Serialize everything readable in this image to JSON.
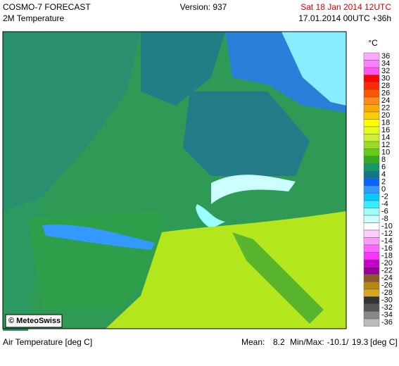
{
  "header": {
    "title": "COSMO-7 FORECAST",
    "subtitle": "2M Temperature",
    "version": "Version: 937",
    "valid_time": "Sat 18 Jan 2014 12UTC",
    "run": "17.01.2014 00UTC +36h"
  },
  "map": {
    "credit": "© MeteoSwiss"
  },
  "legend": {
    "unit": "°C",
    "entries": [
      {
        "label": 36,
        "color": "#ffaaff"
      },
      {
        "label": 34,
        "color": "#ff80ff"
      },
      {
        "label": 32,
        "color": "#ff55ee"
      },
      {
        "label": 30,
        "color": "#ff0000"
      },
      {
        "label": 28,
        "color": "#ff2a00"
      },
      {
        "label": 26,
        "color": "#ff5500"
      },
      {
        "label": 24,
        "color": "#ff8c1a"
      },
      {
        "label": 22,
        "color": "#ffaa00"
      },
      {
        "label": 20,
        "color": "#ffcc00"
      },
      {
        "label": 18,
        "color": "#ffff00"
      },
      {
        "label": 16,
        "color": "#e6ff1a"
      },
      {
        "label": 14,
        "color": "#ccf033"
      },
      {
        "label": 12,
        "color": "#99dd22"
      },
      {
        "label": 10,
        "color": "#66cc11"
      },
      {
        "label": 8,
        "color": "#33aa22"
      },
      {
        "label": 6,
        "color": "#119966"
      },
      {
        "label": 4,
        "color": "#117788"
      },
      {
        "label": 2,
        "color": "#0066ff"
      },
      {
        "label": 0,
        "color": "#3399ff"
      },
      {
        "label": -2,
        "color": "#00ccff"
      },
      {
        "label": -4,
        "color": "#33eeff"
      },
      {
        "label": -6,
        "color": "#99ffff"
      },
      {
        "label": -8,
        "color": "#ccffff"
      },
      {
        "label": -10,
        "color": "#ffffff"
      },
      {
        "label": -12,
        "color": "#ffccff"
      },
      {
        "label": -14,
        "color": "#ff99ff"
      },
      {
        "label": -16,
        "color": "#ff66ff"
      },
      {
        "label": -18,
        "color": "#ff33ff"
      },
      {
        "label": -20,
        "color": "#cc00cc"
      },
      {
        "label": -22,
        "color": "#990099"
      },
      {
        "label": -24,
        "color": "#8b5a2b"
      },
      {
        "label": -26,
        "color": "#b8860b"
      },
      {
        "label": -28,
        "color": "#daa520"
      },
      {
        "label": -30,
        "color": "#333333"
      },
      {
        "label": -32,
        "color": "#555555"
      },
      {
        "label": -34,
        "color": "#888888"
      },
      {
        "label": -36,
        "color": "#bbbbbb"
      }
    ]
  },
  "footer": {
    "label": "Air Temperature [deg C]",
    "mean_label": "Mean:",
    "mean": 8.2,
    "minmax_label": "Min/Max:",
    "min": -10.1,
    "separator": "/",
    "max": 19.3,
    "unit": "[deg C]"
  }
}
